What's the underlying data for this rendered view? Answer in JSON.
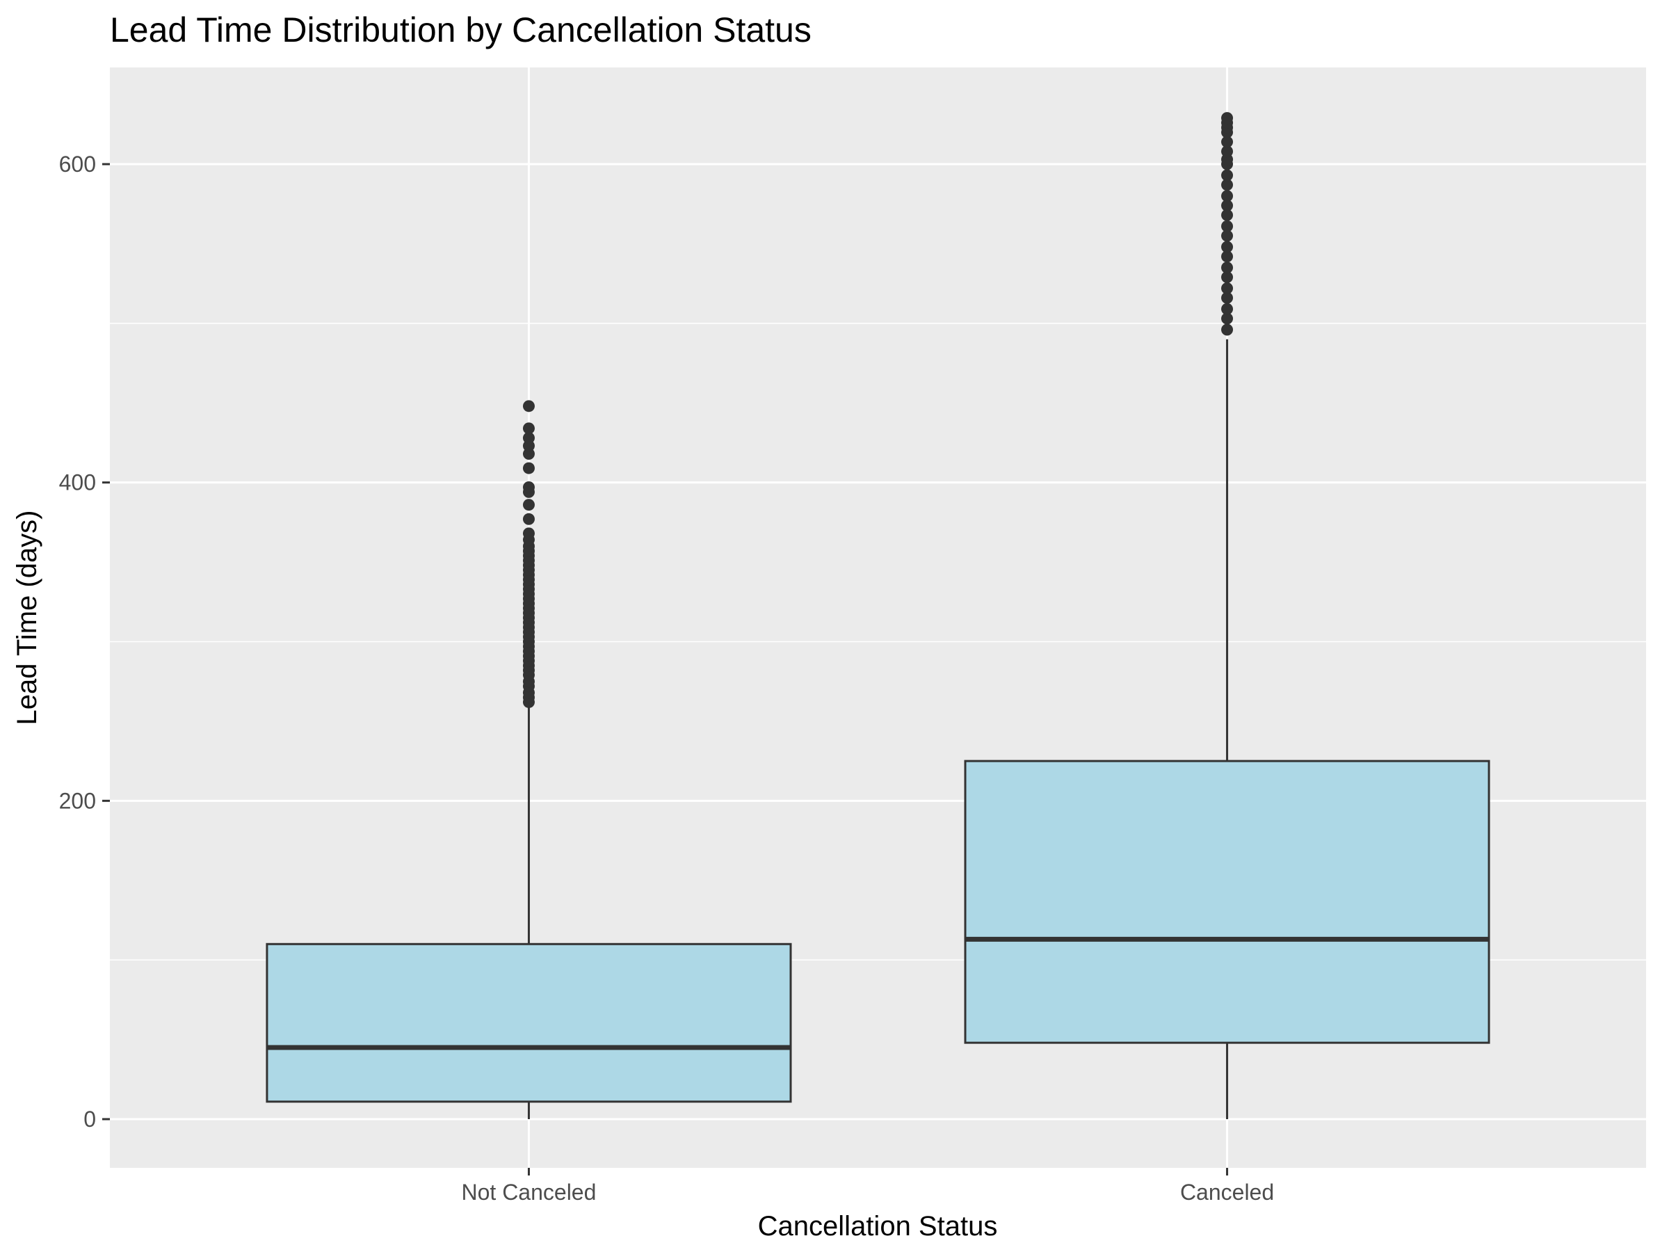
{
  "chart_data": {
    "type": "box",
    "title": "Lead Time Distribution by Cancellation Status",
    "xlabel": "Cancellation Status",
    "ylabel": "Lead Time (days)",
    "categories": [
      "Not Canceled",
      "Canceled"
    ],
    "y_ticks": [
      0,
      200,
      400,
      600
    ],
    "y_minor_ticks": [
      100,
      300,
      500
    ],
    "ylim": [
      -32,
      661
    ],
    "grid": true,
    "box_fill": "#ADD8E6",
    "box_stroke": "#333333",
    "panel_background": "#EBEBEB",
    "boxes": [
      {
        "category": "Not Canceled",
        "min": 0,
        "q1": 11,
        "median": 45,
        "q3": 110,
        "whisker_high": 259,
        "outliers": [
          262,
          265,
          268,
          272,
          275,
          279,
          282,
          285,
          288,
          291,
          294,
          297,
          300,
          303,
          306,
          309,
          312,
          315,
          318,
          321,
          324,
          327,
          330,
          333,
          336,
          339,
          342,
          345,
          348,
          351,
          354,
          357,
          360,
          364,
          368,
          377,
          386,
          394,
          397,
          409,
          418,
          423,
          428,
          434,
          448
        ]
      },
      {
        "category": "Canceled",
        "min": 0,
        "q1": 48,
        "median": 113,
        "q3": 225,
        "whisker_high": 490,
        "outliers": [
          496,
          503,
          509,
          516,
          522,
          529,
          535,
          542,
          548,
          555,
          561,
          568,
          574,
          580,
          587,
          593,
          600,
          603,
          608,
          614,
          620,
          623,
          626,
          629
        ]
      }
    ]
  }
}
